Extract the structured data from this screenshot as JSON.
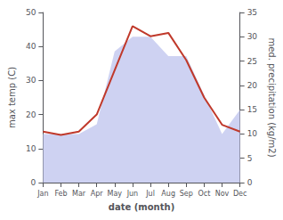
{
  "chart_data": {
    "type": "line",
    "xlabel": "date (month)",
    "ylabel": "max temp (C)",
    "y2label": "med. precipitation (kg/m2)",
    "categories": [
      "Jan",
      "Feb",
      "Mar",
      "Apr",
      "May",
      "Jun",
      "Jul",
      "Aug",
      "Sep",
      "Oct",
      "Nov",
      "Dec"
    ],
    "series": [
      {
        "type": "area",
        "axis": "y2",
        "color": "#c5caf0",
        "values": [
          10,
          10,
          10,
          12,
          27,
          30,
          30,
          26,
          26,
          18,
          10,
          15
        ]
      },
      {
        "type": "line",
        "color": "#c0392b",
        "values": [
          15,
          14,
          15,
          20,
          33,
          46,
          43,
          44,
          36,
          25,
          17,
          15
        ]
      }
    ],
    "ylim": [
      0,
      50
    ],
    "yticks": [
      0,
      10,
      20,
      30,
      40,
      50
    ],
    "y2lim": [
      0,
      35
    ],
    "y2ticks": [
      0,
      5,
      10,
      15,
      20,
      25,
      30,
      35
    ],
    "grid": false
  }
}
